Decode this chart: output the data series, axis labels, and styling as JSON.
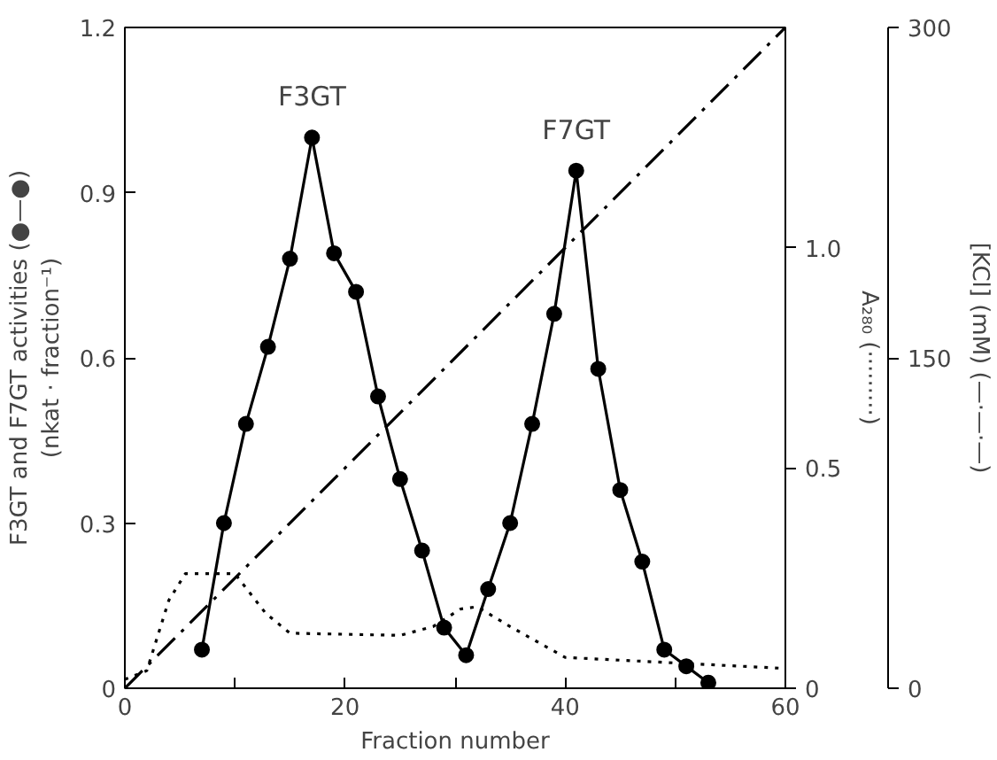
{
  "chart_data": {
    "type": "line",
    "xlabel": "Fraction number",
    "ylabel": "F3GT and F7GT activities (●—●)\n(nkat · fraction⁻¹)",
    "y2label": "A₂₈₀ (·········)",
    "y3label": "[KCl] (mM) (—·—·—)",
    "xlim": [
      0,
      60
    ],
    "xticks": [
      0,
      {
        "value": 10,
        "label": null
      },
      20,
      {
        "value": 30,
        "label": null
      },
      40,
      {
        "value": 50,
        "label": null
      },
      60
    ],
    "ylim": [
      0,
      1.2
    ],
    "yticks": [
      0,
      0.3,
      0.6,
      0.9,
      1.2
    ],
    "y2lim": [
      0,
      1.5
    ],
    "y2ticks": [
      0,
      0.5,
      {
        "value": 1.0,
        "label": "1.0"
      }
    ],
    "y3lim": [
      0,
      300
    ],
    "y3ticks": [
      0,
      150,
      300
    ],
    "grid": false,
    "series": [
      {
        "color": "#000000",
        "marker": "circle",
        "line_style": "solid",
        "x": [
          7,
          9,
          11,
          13,
          15,
          17,
          19,
          21,
          23,
          25,
          27,
          29,
          31,
          33,
          35,
          37,
          39,
          41,
          43,
          45,
          47,
          49,
          51,
          53
        ],
        "values": [
          0.07,
          0.3,
          0.48,
          0.62,
          0.78,
          1.0,
          0.79,
          0.72,
          0.53,
          0.38,
          0.25,
          0.11,
          0.06,
          0.18,
          0.3,
          0.48,
          0.68,
          0.94,
          0.58,
          0.36,
          0.23,
          0.07,
          0.04,
          0.01
        ]
      },
      {
        "color": "#000000",
        "marker": "none",
        "line_style": "dotted",
        "axis": "y2",
        "x": [
          0,
          2,
          4,
          5.5,
          10,
          12.8,
          15,
          25,
          28,
          30.5,
          32,
          35,
          40,
          60
        ],
        "values": [
          0.02,
          0.04,
          0.2,
          0.26,
          0.26,
          0.17,
          0.125,
          0.12,
          0.14,
          0.18,
          0.185,
          0.14,
          0.07,
          0.045
        ]
      },
      {
        "color": "#000000",
        "marker": "none",
        "line_style": "dashdot",
        "axis": "y3",
        "x": [
          0,
          60
        ],
        "values": [
          0,
          300
        ]
      }
    ],
    "annotations": [
      {
        "text": "F3GT",
        "x": 17,
        "y": 1.0
      },
      {
        "text": "F7GT",
        "x": 41,
        "y": 0.94
      }
    ]
  }
}
